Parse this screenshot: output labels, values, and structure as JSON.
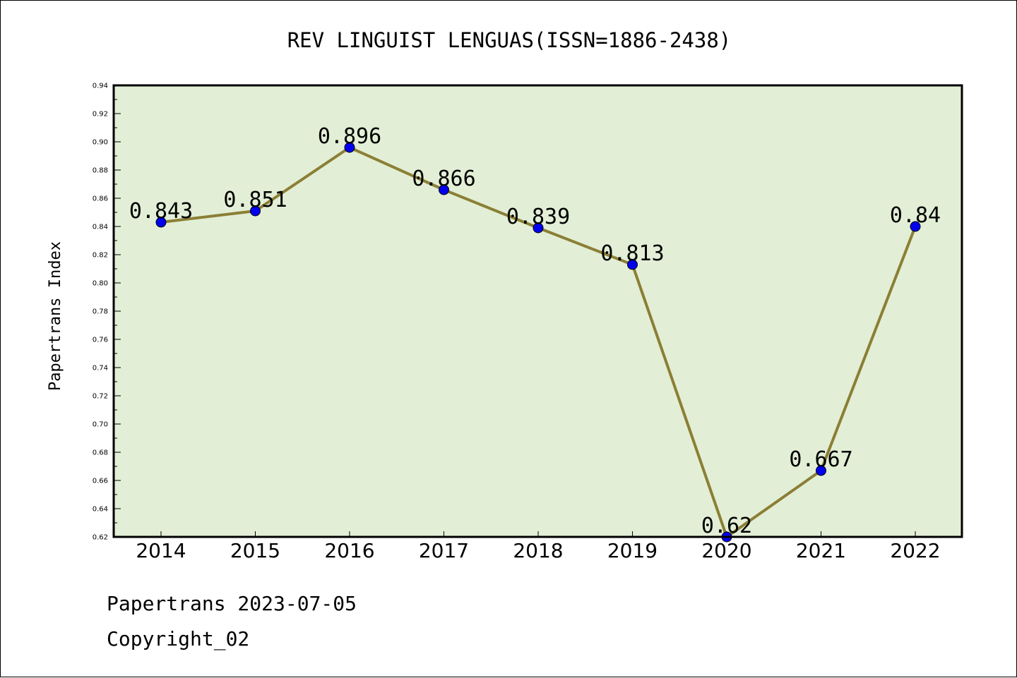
{
  "chart_data": {
    "type": "line",
    "title": "REV LINGUIST LENGUAS(ISSN=1886-2438)",
    "xlabel": "",
    "ylabel": "Papertrans Index",
    "categories": [
      "2014",
      "2015",
      "2016",
      "2017",
      "2018",
      "2019",
      "2020",
      "2021",
      "2022"
    ],
    "series": [
      {
        "values": [
          0.843,
          0.851,
          0.896,
          0.866,
          0.839,
          0.813,
          0.62,
          0.667,
          0.84
        ],
        "labels": [
          "0.843",
          "0.851",
          "0.896",
          "0.866",
          "0.839",
          "0.813",
          "0.62",
          "0.667",
          "0.84"
        ]
      }
    ],
    "ylim": [
      0.62,
      0.94
    ],
    "yticks": [
      "0.62",
      "0.64",
      "0.66",
      "0.68",
      "0.70",
      "0.72",
      "0.74",
      "0.76",
      "0.78",
      "0.80",
      "0.82",
      "0.84",
      "0.86",
      "0.88",
      "0.90",
      "0.92",
      "0.94"
    ],
    "grid": false,
    "legend": "none",
    "colors": {
      "plot_background": "#e2efd6",
      "line": "#8b7f35",
      "marker": "#0000ee"
    }
  },
  "footer": {
    "line1": "Papertrans 2023-07-05",
    "line2": "Copyright_02"
  }
}
